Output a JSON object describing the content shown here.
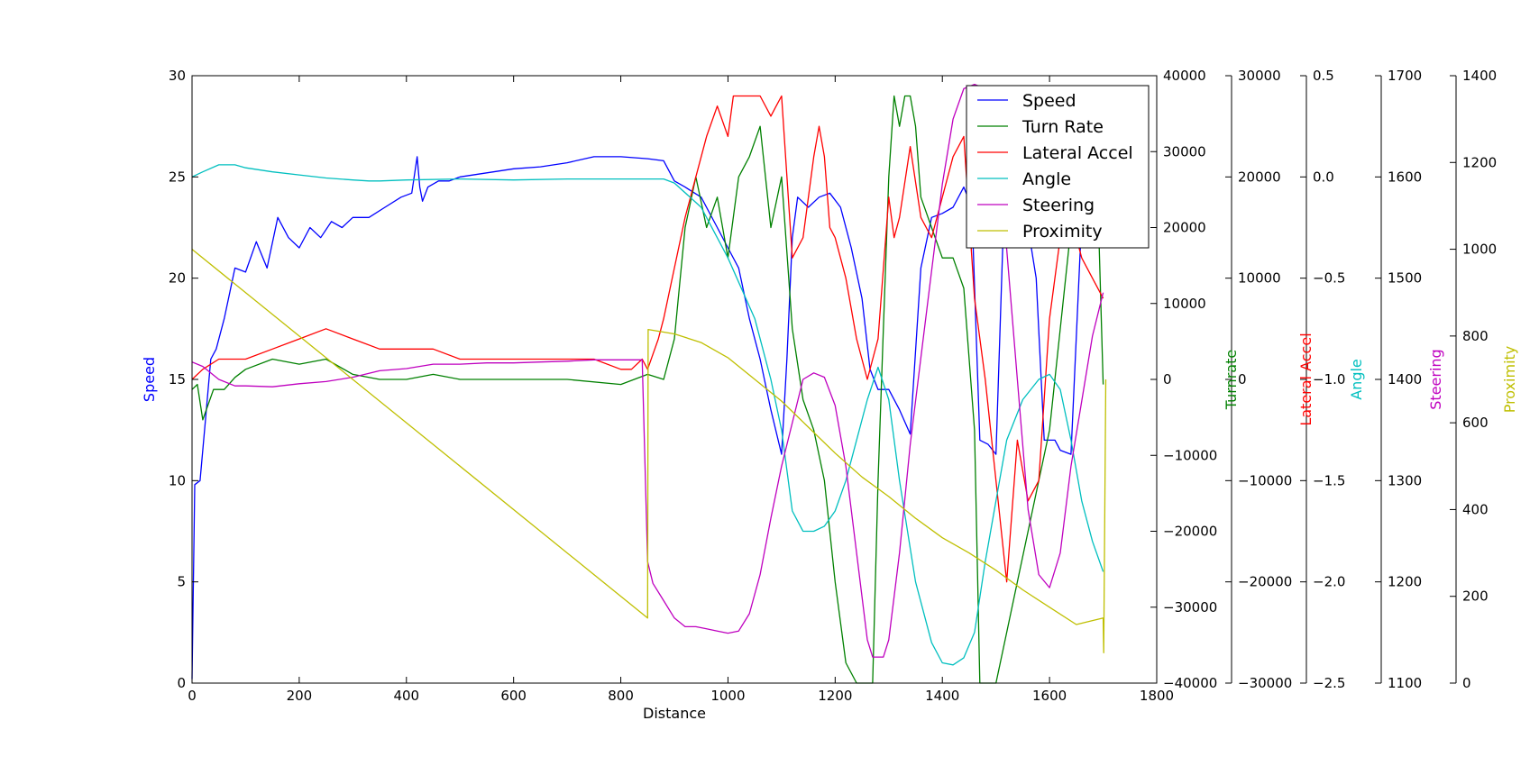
{
  "chart_data": {
    "type": "line",
    "title": "",
    "xlabel": "Distance",
    "xlim": [
      0,
      1800
    ],
    "x_ticks": [
      "0",
      "200",
      "400",
      "600",
      "800",
      "1000",
      "1200",
      "1400",
      "1600",
      "1800"
    ],
    "legend_position": "top-right",
    "grid": false,
    "axes": [
      {
        "id": "speed",
        "label": "Speed",
        "color": "#0000ff",
        "side": "left",
        "ylim": [
          0,
          30
        ],
        "ticks": [
          "0",
          "5",
          "10",
          "15",
          "20",
          "25",
          "30"
        ]
      },
      {
        "id": "turn",
        "label": "Turn Rate",
        "color": "#008000",
        "side": "right",
        "ylim": [
          -40000,
          40000
        ],
        "ticks": [
          "−40000",
          "−30000",
          "−20000",
          "−10000",
          "0",
          "10000",
          "20000",
          "30000",
          "40000"
        ]
      },
      {
        "id": "turnrate",
        "label": "Turnrate",
        "color": "#008000",
        "side": "right",
        "ylim": [
          -30000,
          30000
        ],
        "ticks": [
          "−30000",
          "−20000",
          "−10000",
          "0",
          "10000",
          "20000",
          "30000"
        ]
      },
      {
        "id": "lat",
        "label": "Lateral Accel",
        "color": "#ff0000",
        "side": "right",
        "ylim": [
          -2.5,
          0.5
        ],
        "ticks": [
          "−2.5",
          "−2.0",
          "−1.5",
          "−1.0",
          "−0.5",
          "0.0",
          "0.5"
        ]
      },
      {
        "id": "angle",
        "label": "Angle",
        "color": "#00bfbf",
        "side": "right",
        "ylim": [
          1100,
          1700
        ],
        "ticks": [
          "1100",
          "1200",
          "1300",
          "1400",
          "1500",
          "1600",
          "1700"
        ]
      },
      {
        "id": "steer",
        "label": "Steering",
        "color": "#bf00bf",
        "side": "right",
        "ylim": [
          0,
          1400
        ],
        "ticks": [
          "0",
          "200",
          "400",
          "600",
          "800",
          "1000",
          "1200",
          "1400"
        ]
      },
      {
        "id": "prox",
        "label": "Proximity",
        "color": "#bfbf00",
        "side": "right",
        "ylim": [
          0,
          1400
        ],
        "ticks": []
      }
    ],
    "series": [
      {
        "name": "Speed",
        "color": "#0000ff",
        "x": [
          0,
          5,
          15,
          25,
          35,
          45,
          60,
          80,
          100,
          120,
          140,
          160,
          180,
          200,
          220,
          240,
          260,
          280,
          300,
          330,
          360,
          390,
          410,
          420,
          425,
          430,
          440,
          460,
          480,
          500,
          550,
          600,
          650,
          700,
          750,
          800,
          850,
          880,
          900,
          920,
          950,
          980,
          1000,
          1020,
          1040,
          1060,
          1080,
          1100,
          1110,
          1120,
          1130,
          1150,
          1170,
          1190,
          1210,
          1230,
          1250,
          1265,
          1280,
          1300,
          1320,
          1340,
          1360,
          1380,
          1400,
          1420,
          1440,
          1455,
          1470,
          1485,
          1500,
          1515,
          1530,
          1545,
          1560,
          1575,
          1590,
          1600,
          1610,
          1620,
          1640,
          1660,
          1675,
          1690,
          1700
        ],
        "values": [
          0.2,
          9.8,
          10.0,
          13.0,
          16.0,
          16.5,
          18.0,
          20.5,
          20.3,
          21.8,
          20.5,
          23.0,
          22.0,
          21.5,
          22.5,
          22.0,
          22.8,
          22.5,
          23.0,
          23.0,
          23.5,
          24.0,
          24.2,
          26.0,
          24.5,
          23.8,
          24.5,
          24.8,
          24.8,
          25.0,
          25.2,
          25.4,
          25.5,
          25.7,
          26.0,
          26.0,
          25.9,
          25.8,
          24.8,
          24.5,
          24.0,
          22.5,
          21.5,
          20.5,
          18.0,
          16.0,
          13.5,
          11.3,
          16.0,
          22.0,
          24.0,
          23.5,
          24.0,
          24.2,
          23.5,
          21.5,
          19.0,
          15.5,
          14.5,
          14.5,
          13.5,
          12.3,
          20.5,
          23.0,
          23.2,
          23.5,
          24.5,
          23.5,
          12.0,
          11.8,
          11.3,
          23.5,
          24.0,
          22.5,
          22.5,
          20.0,
          12.0,
          12.0,
          12.0,
          11.5,
          11.3,
          23.0,
          24.0,
          24.5,
          24.0
        ]
      },
      {
        "name": "Turn Rate",
        "color": "#008000",
        "x": [
          0,
          10,
          20,
          40,
          60,
          80,
          100,
          150,
          200,
          250,
          300,
          350,
          400,
          450,
          500,
          600,
          700,
          800,
          850,
          880,
          900,
          920,
          940,
          960,
          980,
          1000,
          1020,
          1040,
          1060,
          1080,
          1100,
          1120,
          1140,
          1160,
          1180,
          1200,
          1220,
          1240,
          1260,
          1270,
          1280,
          1290,
          1300,
          1310,
          1320,
          1330,
          1340,
          1350,
          1360,
          1380,
          1400,
          1420,
          1440,
          1460,
          1470,
          1490,
          1500,
          1520,
          1540,
          1560,
          1580,
          1600,
          1620,
          1640,
          1660,
          1680,
          1690,
          1700
        ],
        "values": [
          -1000,
          -500,
          -4000,
          -1000,
          -1000,
          200,
          1000,
          2000,
          1500,
          2000,
          500,
          0,
          0,
          500,
          0,
          0,
          0,
          -500,
          500,
          0,
          4000,
          15000,
          20000,
          15000,
          18000,
          12000,
          20000,
          22000,
          25000,
          15000,
          20000,
          5000,
          -2000,
          -5000,
          -10000,
          -20000,
          -28000,
          -30000,
          -30000,
          -30000,
          -10000,
          5000,
          20000,
          28000,
          25000,
          28000,
          28000,
          25000,
          18000,
          15000,
          12000,
          12000,
          9000,
          -5000,
          -30000,
          -30000,
          -30000,
          -25000,
          -20000,
          -15000,
          -10000,
          -5000,
          5000,
          15000,
          20000,
          20000,
          18000,
          -500
        ]
      },
      {
        "name": "Lateral Accel",
        "color": "#ff0000",
        "x": [
          0,
          20,
          50,
          100,
          150,
          200,
          250,
          300,
          350,
          400,
          450,
          500,
          550,
          600,
          650,
          700,
          750,
          800,
          820,
          840,
          850,
          870,
          880,
          900,
          920,
          940,
          960,
          980,
          1000,
          1010,
          1020,
          1040,
          1060,
          1080,
          1090,
          1100,
          1120,
          1140,
          1160,
          1170,
          1180,
          1190,
          1200,
          1220,
          1240,
          1260,
          1280,
          1300,
          1310,
          1320,
          1340,
          1360,
          1380,
          1400,
          1420,
          1440,
          1460,
          1480,
          1500,
          1520,
          1540,
          1560,
          1580,
          1600,
          1620,
          1640,
          1660,
          1680,
          1700
        ],
        "values": [
          -1.0,
          -0.95,
          -0.9,
          -0.9,
          -0.85,
          -0.8,
          -0.75,
          -0.8,
          -0.85,
          -0.85,
          -0.85,
          -0.9,
          -0.9,
          -0.9,
          -0.9,
          -0.9,
          -0.9,
          -0.95,
          -0.95,
          -0.9,
          -0.95,
          -0.8,
          -0.7,
          -0.45,
          -0.2,
          0.0,
          0.2,
          0.35,
          0.2,
          0.4,
          0.4,
          0.4,
          0.4,
          0.3,
          0.35,
          0.4,
          -0.4,
          -0.3,
          0.1,
          0.25,
          0.1,
          -0.25,
          -0.3,
          -0.5,
          -0.8,
          -1.0,
          -0.8,
          -0.1,
          -0.3,
          -0.2,
          0.15,
          -0.2,
          -0.3,
          -0.1,
          0.1,
          0.2,
          -0.6,
          -1.0,
          -1.5,
          -2.0,
          -1.3,
          -1.6,
          -1.5,
          -0.7,
          -0.3,
          -0.2,
          -0.4,
          -0.5,
          -0.6
        ]
      },
      {
        "name": "Angle",
        "color": "#00bfbf",
        "x": [
          0,
          20,
          50,
          80,
          100,
          150,
          200,
          250,
          300,
          330,
          350,
          400,
          500,
          600,
          700,
          800,
          850,
          880,
          900,
          950,
          1000,
          1050,
          1080,
          1100,
          1120,
          1140,
          1160,
          1180,
          1200,
          1220,
          1240,
          1260,
          1280,
          1300,
          1320,
          1350,
          1380,
          1400,
          1420,
          1440,
          1460,
          1480,
          1500,
          1520,
          1550,
          1580,
          1600,
          1620,
          1640,
          1660,
          1680,
          1700
        ],
        "values": [
          1600,
          1605,
          1612,
          1612,
          1609,
          1605,
          1602,
          1599,
          1597,
          1596,
          1596,
          1597,
          1598,
          1597,
          1598,
          1598,
          1598,
          1598,
          1594,
          1570,
          1520,
          1460,
          1400,
          1350,
          1270,
          1250,
          1250,
          1255,
          1270,
          1300,
          1340,
          1380,
          1412,
          1380,
          1300,
          1200,
          1140,
          1120,
          1118,
          1125,
          1150,
          1220,
          1280,
          1340,
          1380,
          1400,
          1405,
          1390,
          1340,
          1280,
          1240,
          1210
        ]
      },
      {
        "name": "Steering",
        "color": "#bf00bf",
        "x": [
          0,
          20,
          50,
          80,
          100,
          150,
          200,
          250,
          300,
          350,
          400,
          450,
          500,
          550,
          600,
          650,
          700,
          750,
          800,
          840,
          850,
          860,
          880,
          900,
          920,
          940,
          960,
          980,
          1000,
          1020,
          1040,
          1060,
          1080,
          1100,
          1120,
          1140,
          1160,
          1180,
          1200,
          1220,
          1240,
          1260,
          1270,
          1280,
          1290,
          1300,
          1320,
          1340,
          1360,
          1380,
          1400,
          1420,
          1440,
          1460,
          1480,
          1500,
          1520,
          1540,
          1560,
          1580,
          1600,
          1620,
          1640,
          1660,
          1680,
          1700
        ],
        "values": [
          740,
          730,
          700,
          685,
          685,
          683,
          690,
          695,
          705,
          720,
          725,
          735,
          735,
          738,
          738,
          740,
          742,
          745,
          745,
          745,
          280,
          230,
          190,
          150,
          130,
          130,
          125,
          120,
          115,
          120,
          160,
          250,
          380,
          500,
          600,
          700,
          715,
          705,
          640,
          500,
          300,
          100,
          60,
          60,
          60,
          100,
          300,
          550,
          750,
          950,
          1150,
          1300,
          1370,
          1380,
          1370,
          1300,
          1000,
          700,
          400,
          250,
          220,
          300,
          500,
          650,
          800,
          900
        ]
      },
      {
        "name": "Proximity",
        "color": "#bfbf00",
        "x": [
          0,
          850,
          851,
          900,
          950,
          1000,
          1050,
          1100,
          1150,
          1200,
          1250,
          1300,
          1350,
          1400,
          1450,
          1500,
          1550,
          1600,
          1650,
          1700,
          1701,
          1705
        ],
        "values": [
          1000,
          150,
          815,
          805,
          785,
          750,
          700,
          650,
          590,
          530,
          475,
          430,
          380,
          335,
          300,
          260,
          215,
          175,
          135,
          150,
          70,
          700
        ]
      }
    ]
  }
}
